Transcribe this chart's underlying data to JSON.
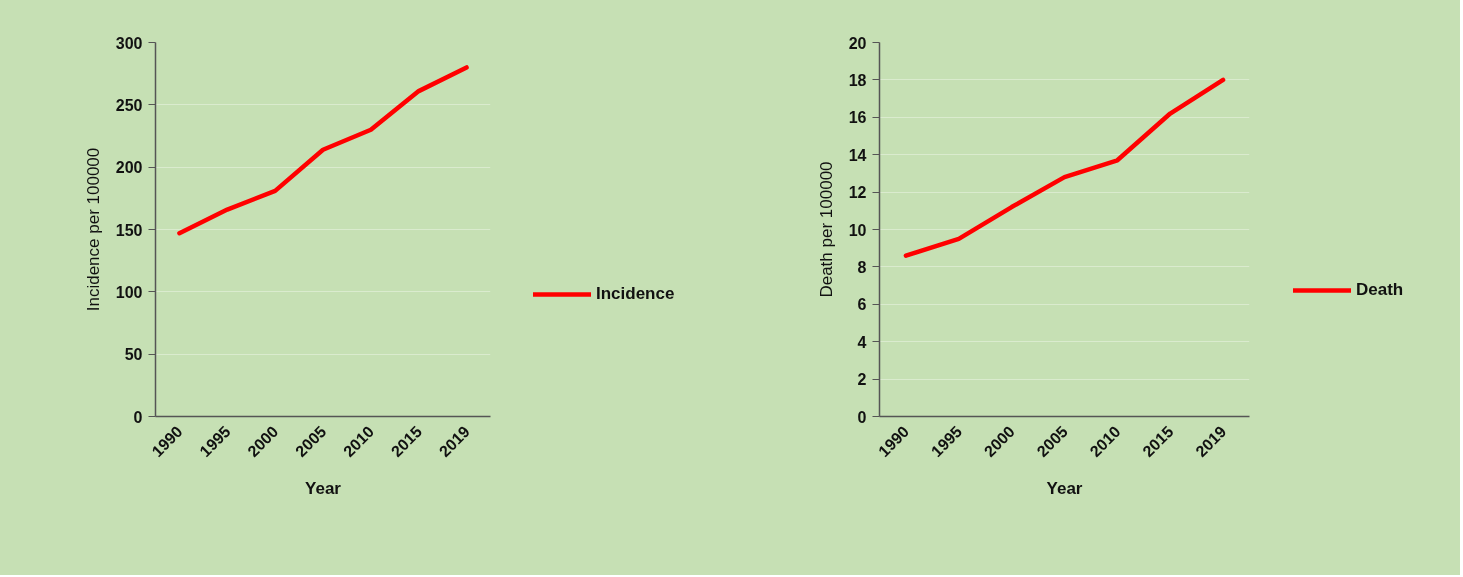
{
  "chart_data": [
    {
      "type": "line",
      "xlabel": "Year",
      "ylabel": "Incidence per 100000",
      "categories": [
        "1990",
        "1995",
        "2000",
        "2005",
        "2010",
        "2015",
        "2019"
      ],
      "ylim": [
        0,
        300
      ],
      "yticks": [
        0,
        50,
        100,
        150,
        200,
        250,
        300
      ],
      "grid": "y",
      "legend": "right",
      "series": [
        {
          "name": "Incidence",
          "color": "#ff0000",
          "values": [
            147,
            166,
            181,
            214,
            230,
            261,
            280
          ]
        }
      ]
    },
    {
      "type": "line",
      "xlabel": "Year",
      "ylabel": "Death per 100000",
      "categories": [
        "1990",
        "1995",
        "2000",
        "2005",
        "2010",
        "2015",
        "2019"
      ],
      "ylim": [
        0,
        20
      ],
      "yticks": [
        0,
        2,
        4,
        6,
        8,
        10,
        12,
        14,
        16,
        18,
        20
      ],
      "grid": "y",
      "legend": "right",
      "series": [
        {
          "name": "Death",
          "color": "#ff0000",
          "values": [
            8.6,
            9.5,
            11.2,
            12.8,
            13.7,
            16.2,
            18.0
          ]
        }
      ]
    }
  ]
}
